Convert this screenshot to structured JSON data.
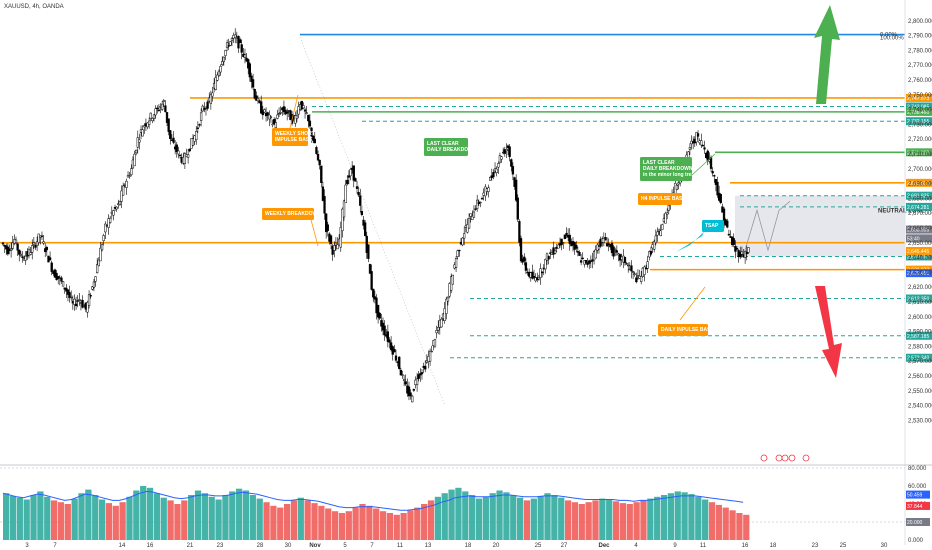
{
  "title": "XAUUSD, 4h, OANDA",
  "chart_data": [
    {
      "type": "candlestick",
      "title": "XAUUSD, 4h, OANDA",
      "ylim": [
        2510,
        2810
      ],
      "y_ticks": [
        2800,
        2790,
        2780,
        2770,
        2760,
        2750,
        2740,
        2730,
        2720,
        2710,
        2700,
        2690,
        2680,
        2670,
        2660,
        2650,
        2640,
        2630,
        2620,
        2610,
        2600,
        2590,
        2580,
        2570,
        2560,
        2550,
        2540,
        2530
      ],
      "x_ticks": [
        "3",
        "7",
        "14",
        "16",
        "21",
        "23",
        "28",
        "30",
        "Nov",
        "5",
        "7",
        "11",
        "13",
        "18",
        "20",
        "25",
        "27",
        "Dec",
        "4",
        "9",
        "11",
        "16",
        "18",
        "23",
        "25",
        "30"
      ],
      "grid": false,
      "key_prices": [
        {
          "value": 2790.69,
          "label": "",
          "color": "#1e88e5",
          "style": "solid"
        },
        {
          "value": 2747.873,
          "label": "2,747.873",
          "color": "#ff9800",
          "style": "solid"
        },
        {
          "value": 2742.085,
          "label": "2,742.085",
          "color": "#26a69a",
          "style": "dashed"
        },
        {
          "value": 2738.46,
          "label": "2,738.460",
          "color": "#4caf50",
          "style": "solid"
        },
        {
          "value": 2732.155,
          "label": "2,732.155",
          "color": "#26a69a",
          "style": "dashed"
        },
        {
          "value": 2711.129,
          "label": "2,711.129",
          "color": "#4caf50",
          "style": "solid"
        },
        {
          "value": 2690.512,
          "label": "2,690.512",
          "color": "#ff9800",
          "style": "solid"
        },
        {
          "value": 2681.825,
          "label": "2,681.825",
          "color": "#26a69a",
          "style": "dashed"
        },
        {
          "value": 2674.281,
          "label": "2,674.281",
          "color": "#26a69a",
          "style": "dashed"
        },
        {
          "value": 2650.1,
          "label": "",
          "color": "#ff9800",
          "style": "solid"
        },
        {
          "value": 2640.782,
          "label": "2,640.782",
          "color": "#26a69a",
          "style": "dashed"
        },
        {
          "value": 2631.873,
          "label": "2,631.873",
          "color": "#ff9800",
          "style": "solid"
        },
        {
          "value": 2612.35,
          "label": "2,612.350",
          "color": "#26a69a",
          "style": "dashed"
        },
        {
          "value": 2587.185,
          "label": "2,587.185",
          "color": "#26a69a",
          "style": "dashed"
        },
        {
          "value": 2572.34,
          "label": "2,572.340",
          "color": "#26a69a",
          "style": "dashed"
        }
      ],
      "price_tags": [
        {
          "value": 2658.935,
          "label": "2,658.935",
          "color": "#787b86"
        },
        {
          "value": 2653.0,
          "label": "53:40",
          "color": "#787b86"
        },
        {
          "value": 2644.5,
          "label": "2,645.445",
          "color": "#ff9800"
        },
        {
          "value": 2629.5,
          "label": "2,629.455",
          "color": "#2962ff"
        }
      ],
      "fib_labels": [
        {
          "value": 2790.69,
          "label": "0.00%"
        },
        {
          "value": 2788.8,
          "label": "100.00%"
        }
      ],
      "zones": [
        {
          "label": "NEUTRAL ZONE",
          "y_range": [
            2640.8,
            2681.8
          ]
        }
      ],
      "annotations": [
        {
          "text": [
            "WEEKLY SHORT",
            "IMPULSE BASE"
          ],
          "color": "#ff9800",
          "near_price": 2718
        },
        {
          "text": [
            "LAST CLEAR",
            "DAILY BREAKDOWN"
          ],
          "color": "#4caf50",
          "near_price": 2712
        },
        {
          "text": [
            "WEEKLY BREAKDOWN"
          ],
          "color": "#ff9800",
          "near_price": 2674
        },
        {
          "text": [
            "LAST CLEAR",
            "DAILY BREAKDOWN",
            "in the minor long trend"
          ],
          "color": "#4caf50",
          "near_price": 2700
        },
        {
          "text": [
            "H4 INPULSE BASE"
          ],
          "color": "#ff9800",
          "near_price": 2684
        },
        {
          "text": [
            "TSAP"
          ],
          "color": "#00bcd4",
          "near_price": 2663
        },
        {
          "text": [
            "DAILY INPULSE BASE"
          ],
          "color": "#ff9800",
          "near_price": 2604
        }
      ],
      "candles_approx_path": [
        2650,
        2645,
        2652,
        2640,
        2642,
        2648,
        2655,
        2643,
        2630,
        2625,
        2618,
        2608,
        2612,
        2605,
        2620,
        2640,
        2660,
        2670,
        2675,
        2690,
        2700,
        2720,
        2730,
        2735,
        2740,
        2745,
        2720,
        2712,
        2705,
        2715,
        2725,
        2740,
        2745,
        2760,
        2775,
        2785,
        2789,
        2780,
        2770,
        2750,
        2740,
        2735,
        2730,
        2740,
        2738,
        2732,
        2745,
        2735,
        2720,
        2700,
        2660,
        2645,
        2650,
        2690,
        2700,
        2680,
        2655,
        2620,
        2600,
        2590,
        2580,
        2570,
        2555,
        2545,
        2560,
        2565,
        2575,
        2590,
        2600,
        2620,
        2640,
        2655,
        2665,
        2675,
        2680,
        2690,
        2700,
        2710,
        2715,
        2690,
        2640,
        2630,
        2625,
        2630,
        2640,
        2645,
        2650,
        2655,
        2648,
        2640,
        2635,
        2640,
        2650,
        2652,
        2645,
        2640,
        2638,
        2630,
        2625,
        2632,
        2645,
        2655,
        2665,
        2680,
        2690,
        2700,
        2715,
        2722,
        2716,
        2705,
        2690,
        2670,
        2655,
        2645,
        2642,
        2645
      ]
    },
    {
      "type": "bar",
      "title": "",
      "ylim": [
        0,
        80
      ],
      "y_ticks": [
        80,
        60,
        40,
        20,
        0
      ],
      "grid": false,
      "series": [
        {
          "values": [
            52,
            49,
            47,
            45,
            50,
            54,
            48,
            44,
            42,
            40,
            46,
            52,
            56,
            50,
            45,
            41,
            38,
            42,
            48,
            55,
            60,
            58,
            52,
            47,
            44,
            40,
            44,
            50,
            55,
            52,
            48,
            45,
            50,
            54,
            57,
            55,
            50,
            46,
            42,
            38,
            36,
            40,
            44,
            47,
            44,
            41,
            38,
            35,
            32,
            30,
            32,
            36,
            40,
            38,
            35,
            32,
            30,
            28,
            30,
            33,
            36,
            40,
            44,
            48,
            52,
            56,
            58,
            54,
            50,
            46,
            48,
            52,
            55,
            53,
            50,
            47,
            44,
            46,
            49,
            52,
            50,
            47,
            44,
            42,
            40,
            42,
            44,
            46,
            45,
            43,
            41,
            40,
            42,
            44,
            46,
            48,
            50,
            52,
            54,
            53,
            51,
            48,
            45,
            42,
            39,
            36,
            33,
            30,
            28
          ]
        },
        {
          "name": "",
          "values": [
            52,
            50,
            48,
            47,
            49,
            51,
            50,
            48,
            46,
            44,
            45,
            48,
            51,
            50,
            48,
            46,
            44,
            44,
            46,
            49,
            52,
            54,
            53,
            51,
            49,
            47,
            46,
            47,
            49,
            50,
            50,
            49,
            49,
            50,
            52,
            53,
            52,
            51,
            49,
            47,
            45,
            44,
            44,
            45,
            45,
            44,
            43,
            41,
            39,
            37,
            36,
            36,
            37,
            37,
            37,
            36,
            35,
            34,
            33,
            33,
            34,
            35,
            37,
            39,
            42,
            44,
            47,
            48,
            49,
            48,
            48,
            48,
            49,
            50,
            50,
            49,
            48,
            48,
            48,
            49,
            49,
            49,
            48,
            47,
            46,
            45,
            45,
            45,
            45,
            45,
            44,
            44,
            43,
            44,
            44,
            45,
            46,
            47,
            48,
            49,
            49,
            49,
            48,
            47,
            46,
            45,
            44,
            43,
            42
          ]
        }
      ],
      "value_tags": [
        {
          "value": 50.459,
          "label": "50.459",
          "color": "#2962ff"
        },
        {
          "value": 37.844,
          "label": "37.844",
          "color": "#f23645"
        },
        {
          "value": 20.0,
          "label": "20.000",
          "color": "#787b86"
        }
      ]
    }
  ]
}
